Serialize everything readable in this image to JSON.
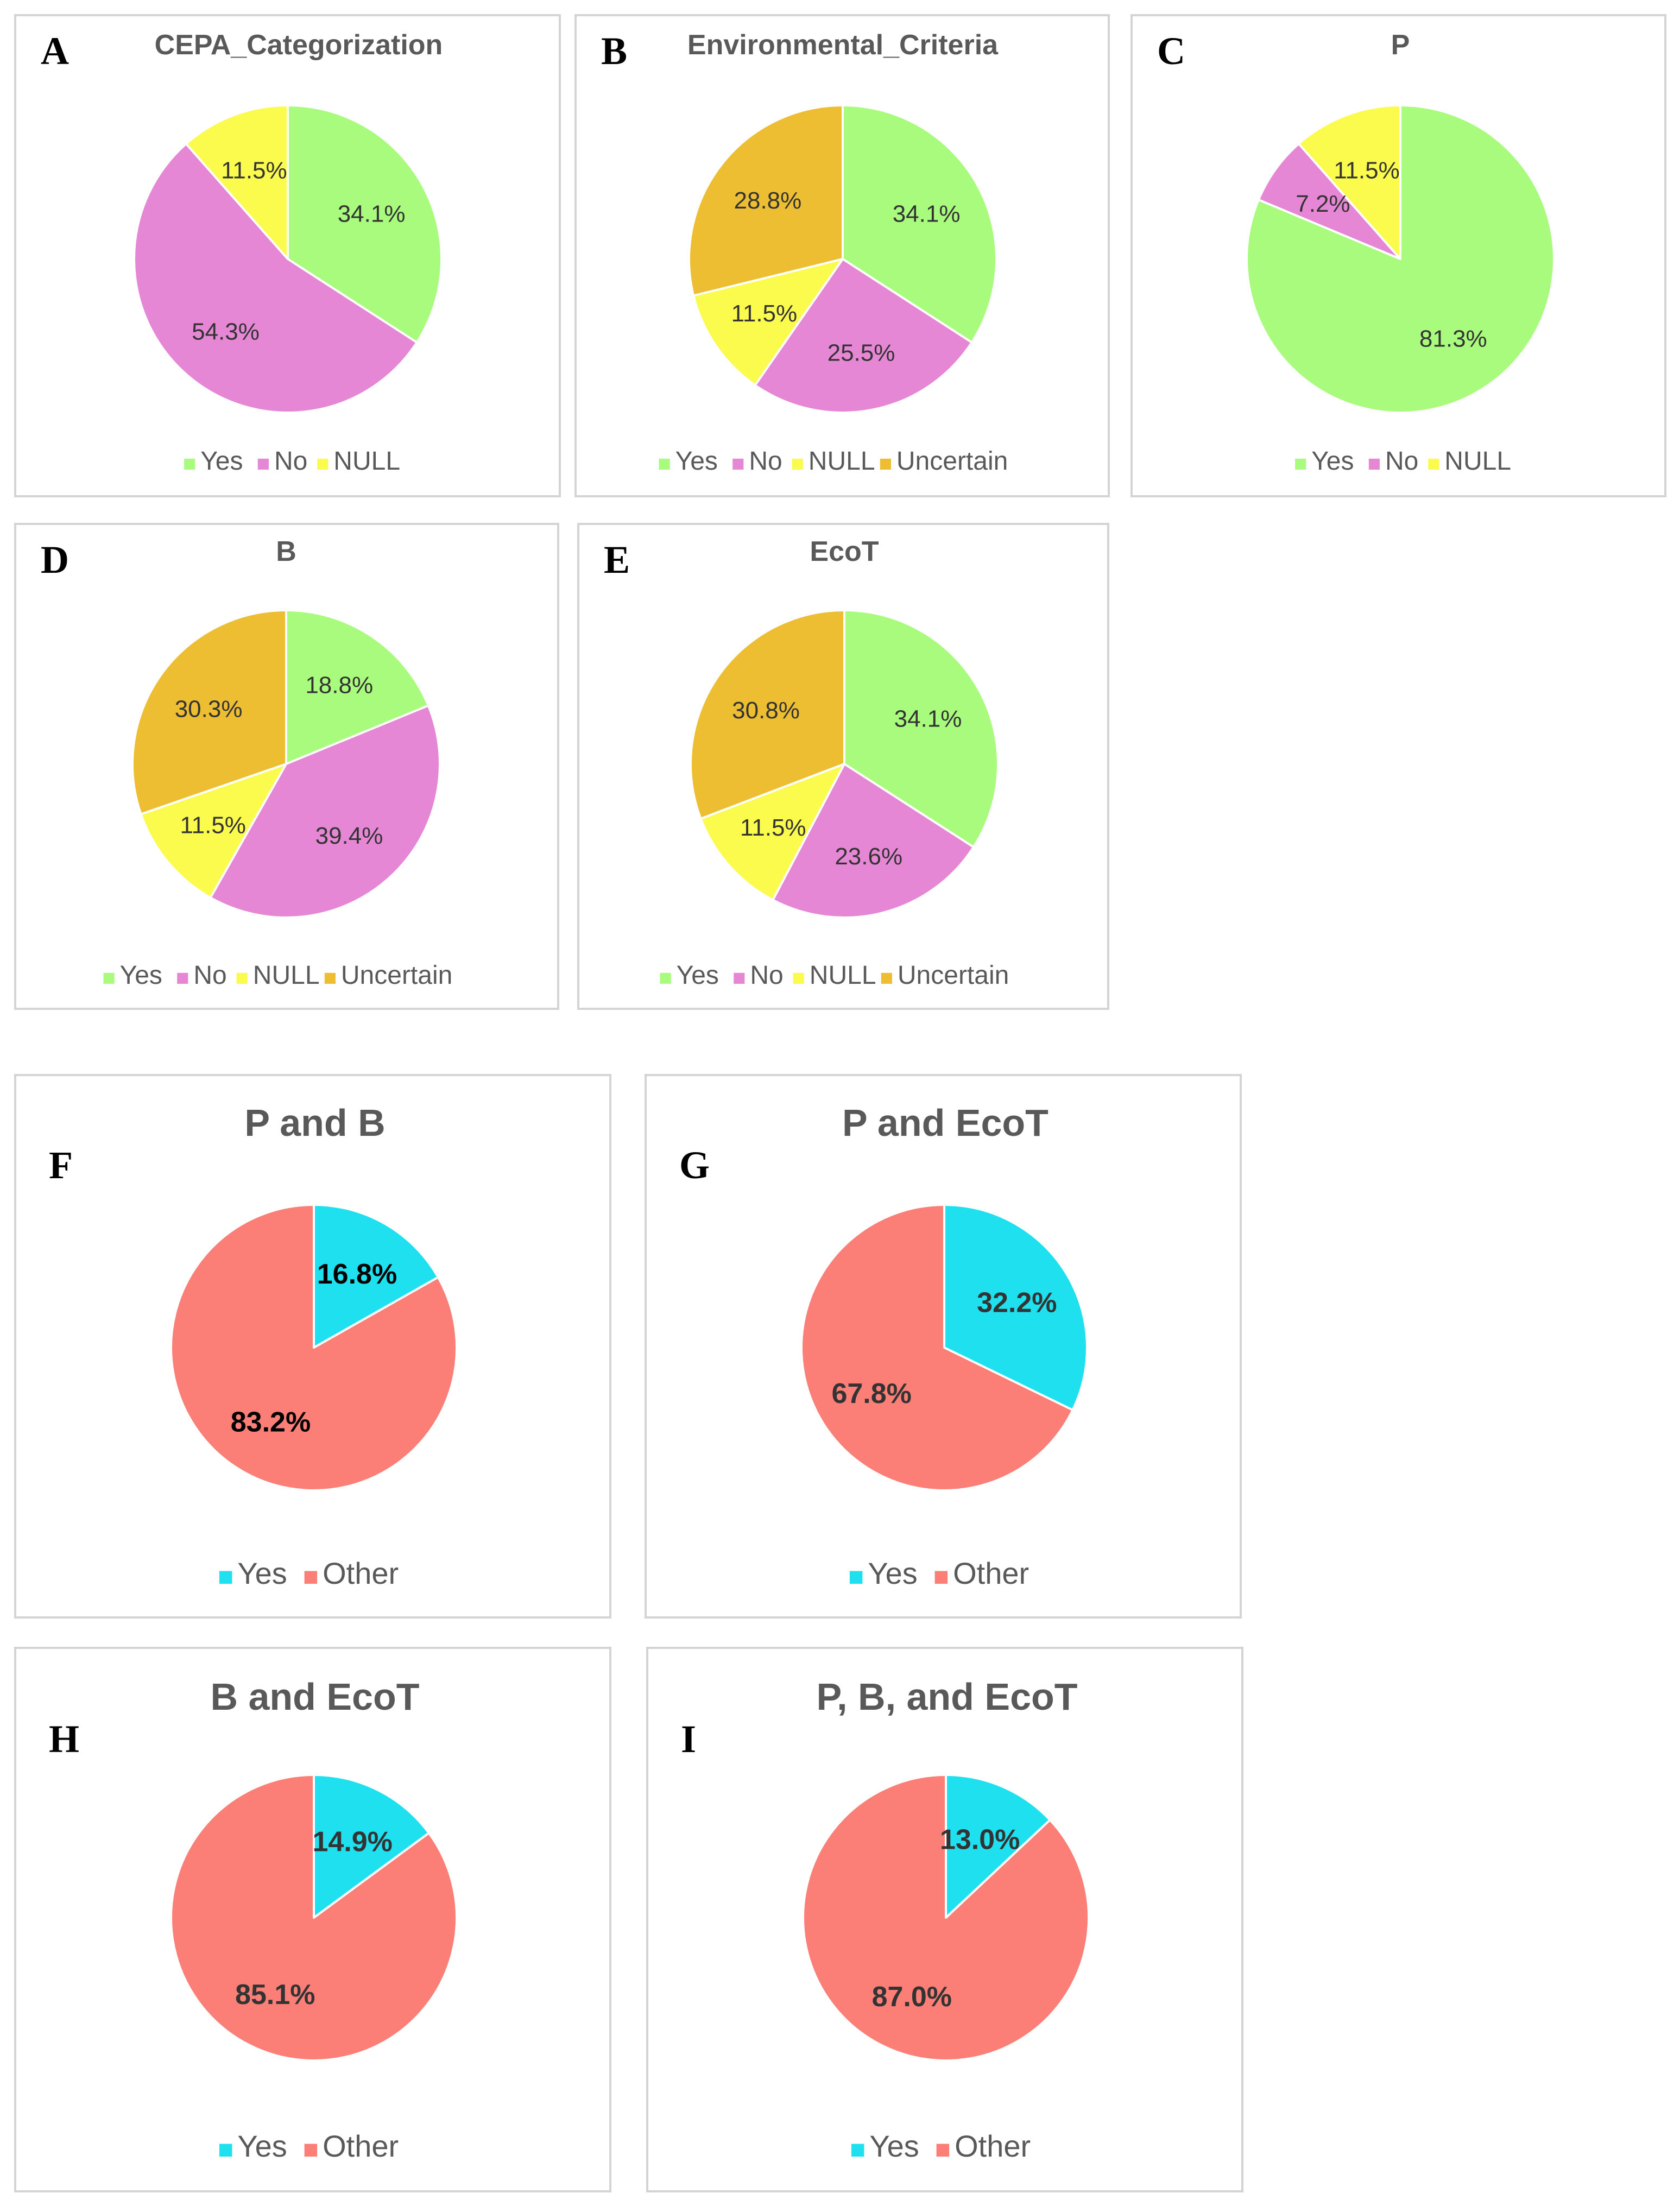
{
  "colors": {
    "yes": "#a9fb7e",
    "no": "#e587d4",
    "null": "#fbfb4e",
    "uncertain": "#edbe32",
    "yes_combo": "#1ee0ef",
    "other": "#fb7f77",
    "title": "#595959",
    "letter": "#000000",
    "label": "#333333"
  },
  "chart_data": [
    {
      "id": "A",
      "panel_letter": "A",
      "type": "pie",
      "title": "CEPA_Categorization",
      "categories": [
        "Yes",
        "No",
        "NULL"
      ],
      "values": [
        34.1,
        54.3,
        11.5
      ],
      "labels": [
        "34.1%",
        "54.3%",
        "11.5%"
      ],
      "legend": [
        "Yes",
        "No",
        "NULL"
      ],
      "legend_position": "bottom"
    },
    {
      "id": "B",
      "panel_letter": "B",
      "type": "pie",
      "title": "Environmental_Criteria",
      "categories": [
        "Yes",
        "No",
        "NULL",
        "Uncertain"
      ],
      "values": [
        34.1,
        25.5,
        11.5,
        28.8
      ],
      "labels": [
        "34.1%",
        "25.5%",
        "11.5%",
        "28.8%"
      ],
      "legend": [
        "Yes",
        "No",
        "NULL",
        "Uncertain"
      ],
      "legend_position": "bottom"
    },
    {
      "id": "C",
      "panel_letter": "C",
      "type": "pie",
      "title": "P",
      "categories": [
        "Yes",
        "No",
        "NULL"
      ],
      "values": [
        81.3,
        7.2,
        11.5
      ],
      "labels": [
        "81.3%",
        "7.2%",
        "11.5%"
      ],
      "legend": [
        "Yes",
        "No",
        "NULL"
      ],
      "legend_position": "bottom"
    },
    {
      "id": "D",
      "panel_letter": "D",
      "type": "pie",
      "title": "B",
      "categories": [
        "Yes",
        "No",
        "NULL",
        "Uncertain"
      ],
      "values": [
        18.8,
        39.4,
        11.5,
        30.3
      ],
      "labels": [
        "18.8%",
        "39.4%",
        "11.5%",
        "30.3%"
      ],
      "legend": [
        "Yes",
        "No",
        "NULL",
        "Uncertain"
      ],
      "legend_position": "bottom"
    },
    {
      "id": "E",
      "panel_letter": "E",
      "type": "pie",
      "title": "EcoT",
      "categories": [
        "Yes",
        "No",
        "NULL",
        "Uncertain"
      ],
      "values": [
        34.1,
        23.6,
        11.5,
        30.8
      ],
      "labels": [
        "34.1%",
        "23.6%",
        "11.5%",
        "30.8%"
      ],
      "legend": [
        "Yes",
        "No",
        "NULL",
        "Uncertain"
      ],
      "legend_position": "bottom"
    },
    {
      "id": "F",
      "panel_letter": "F",
      "type": "pie",
      "title": "P and B",
      "categories": [
        "Yes",
        "Other"
      ],
      "values": [
        16.8,
        83.2
      ],
      "labels": [
        "16.8%",
        "83.2%"
      ],
      "legend": [
        "Yes",
        "Other"
      ],
      "legend_position": "bottom"
    },
    {
      "id": "G",
      "panel_letter": "G",
      "type": "pie",
      "title": "P and EcoT",
      "categories": [
        "Yes",
        "Other"
      ],
      "values": [
        32.2,
        67.8
      ],
      "labels": [
        "32.2%",
        "67.8%"
      ],
      "legend": [
        "Yes",
        "Other"
      ],
      "legend_position": "bottom"
    },
    {
      "id": "H",
      "panel_letter": "H",
      "type": "pie",
      "title": "B and EcoT",
      "categories": [
        "Yes",
        "Other"
      ],
      "values": [
        14.9,
        85.1
      ],
      "labels": [
        "14.9%",
        "85.1%"
      ],
      "legend": [
        "Yes",
        "Other"
      ],
      "legend_position": "bottom"
    },
    {
      "id": "I",
      "panel_letter": "I",
      "type": "pie",
      "title": "P, B, and EcoT",
      "categories": [
        "Yes",
        "Other"
      ],
      "values": [
        13.0,
        87.0
      ],
      "labels": [
        "13.0%",
        "87.0%"
      ],
      "legend": [
        "Yes",
        "Other"
      ],
      "legend_position": "bottom"
    }
  ]
}
